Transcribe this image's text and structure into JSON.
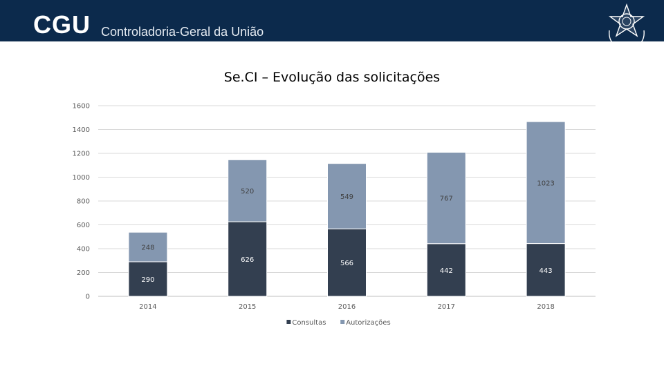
{
  "header": {
    "logo_text": "CGU",
    "org_name": "Controladoria-Geral da União",
    "background_color": "#0c2a4c",
    "emblem_icon": "coat-of-arms-icon"
  },
  "chart_data": {
    "type": "bar",
    "stacked": true,
    "title": "Se.CI – Evolução das solicitações",
    "xlabel": "",
    "ylabel": "",
    "categories": [
      "2014",
      "2015",
      "2016",
      "2017",
      "2018"
    ],
    "series": [
      {
        "name": "Consultas",
        "values": [
          290,
          626,
          566,
          442,
          443
        ],
        "color": "#333f50",
        "label_color": "#ffffff"
      },
      {
        "name": "Autorizações",
        "values": [
          248,
          520,
          549,
          767,
          1023
        ],
        "color": "#8497b0",
        "label_color": "#404040"
      }
    ],
    "ylim": [
      0,
      1600
    ],
    "y_ticks": [
      "0",
      "200",
      "400",
      "600",
      "800",
      "1000",
      "1200",
      "1400",
      "1600"
    ],
    "grid": true,
    "legend": "bottom"
  }
}
